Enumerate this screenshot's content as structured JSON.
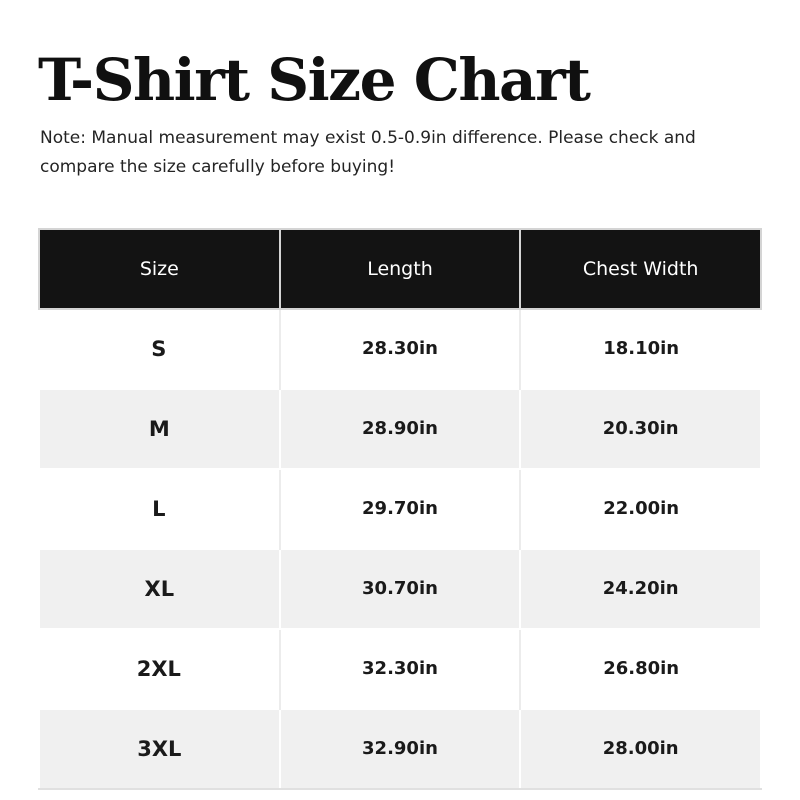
{
  "colors": {
    "header_bg": "#131313",
    "header_text": "#ffffff",
    "header_border": "#d4d4d4",
    "row_odd_bg": "#ffffff",
    "row_even_bg": "#f0f0f0",
    "body_divider": "#ececec",
    "title_text": "#101010",
    "body_text": "#1a1a1a"
  },
  "chart_data": {
    "type": "table",
    "title": "T-Shirt Size Chart",
    "note": "Note: Manual measurement may exist 0.5-0.9in difference. Please check and compare the size carefully before buying!",
    "unit": "in",
    "columns": [
      "Size",
      "Length",
      "Chest Width"
    ],
    "rows": [
      [
        "S",
        "28.30in",
        "18.10in"
      ],
      [
        "M",
        "28.90in",
        "20.30in"
      ],
      [
        "L",
        "29.70in",
        "22.00in"
      ],
      [
        "XL",
        "30.70in",
        "24.20in"
      ],
      [
        "2XL",
        "32.30in",
        "26.80in"
      ],
      [
        "3XL",
        "32.90in",
        "28.00in"
      ]
    ],
    "layout": {
      "legend": "none",
      "grid": "alternating-row-shading",
      "columns_equal_width": true
    }
  }
}
